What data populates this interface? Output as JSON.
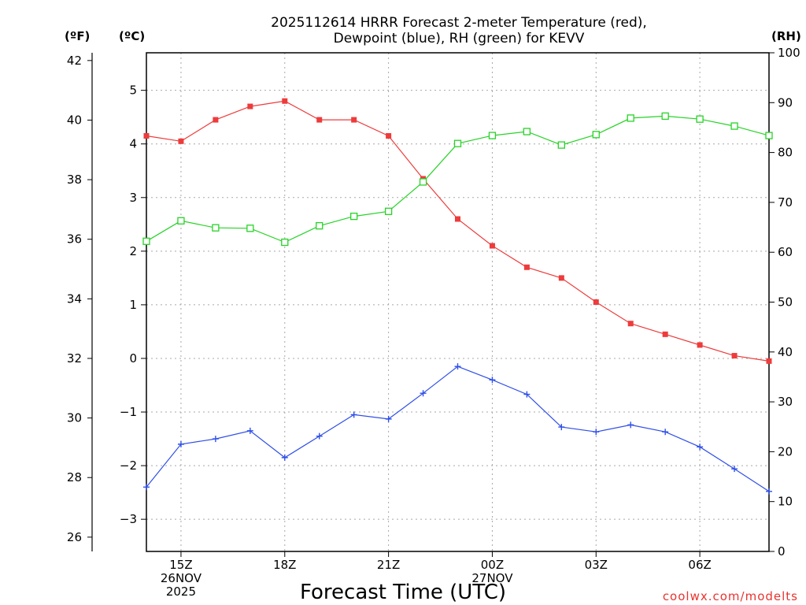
{
  "chart_data": {
    "type": "line",
    "title": [
      "2025112614 HRRR Forecast 2-meter Temperature (red),",
      "Dewpoint (blue), RH (green) for KEVV"
    ],
    "xlabel": "Forecast Time (UTC)",
    "credit": "coolwx.com/modelts",
    "units": {
      "far": "(ºF)",
      "cel": "(ºC)",
      "rh": "(RH)"
    },
    "x": [
      14,
      15,
      16,
      17,
      18,
      19,
      20,
      21,
      22,
      23,
      24,
      25,
      26,
      27,
      28,
      29,
      30,
      31,
      32
    ],
    "x_ticks": [
      {
        "x": 15,
        "lines": [
          "15Z",
          "26NOV",
          "2025"
        ]
      },
      {
        "x": 18,
        "lines": [
          "18Z"
        ]
      },
      {
        "x": 21,
        "lines": [
          "21Z"
        ]
      },
      {
        "x": 24,
        "lines": [
          "00Z",
          "27NOV"
        ]
      },
      {
        "x": 27,
        "lines": [
          "03Z"
        ]
      },
      {
        "x": 30,
        "lines": [
          "06Z"
        ]
      }
    ],
    "celsius_axis": {
      "range": [
        -3.6,
        5.7
      ],
      "ticks": [
        -3,
        -2,
        -1,
        0,
        1,
        2,
        3,
        4,
        5
      ]
    },
    "fahrenheit_axis": {
      "ticks": [
        26,
        28,
        30,
        32,
        34,
        36,
        38,
        40,
        42
      ]
    },
    "rh_axis": {
      "range": [
        0,
        100
      ],
      "ticks": [
        0,
        10,
        20,
        30,
        40,
        50,
        60,
        70,
        80,
        90,
        100
      ]
    },
    "series": [
      {
        "name": "2-meter Temperature",
        "axis": "celsius",
        "color": "#ee3b3b",
        "marker": "filled-square",
        "values": [
          4.15,
          4.05,
          4.45,
          4.7,
          4.8,
          4.45,
          4.45,
          4.15,
          3.35,
          2.6,
          2.1,
          1.7,
          1.5,
          1.05,
          0.65,
          0.45,
          0.25,
          0.05,
          -0.05
        ]
      },
      {
        "name": "Dewpoint",
        "axis": "celsius",
        "color": "#2f4fe8",
        "marker": "plus",
        "values": [
          -2.4,
          -1.6,
          -1.5,
          -1.35,
          -1.85,
          -1.45,
          -1.05,
          -1.13,
          -0.65,
          -0.15,
          -0.4,
          -0.67,
          -1.28,
          -1.37,
          -1.24,
          -1.37,
          -1.65,
          -2.06,
          -2.48
        ]
      },
      {
        "name": "RH",
        "axis": "rh",
        "color": "#27d327",
        "marker": "open-square",
        "values": [
          62.2,
          66.3,
          64.9,
          64.8,
          62.0,
          65.3,
          67.2,
          68.2,
          74.1,
          81.8,
          83.4,
          84.2,
          81.5,
          83.6,
          86.9,
          87.3,
          86.7,
          85.3,
          83.4
        ]
      }
    ]
  }
}
